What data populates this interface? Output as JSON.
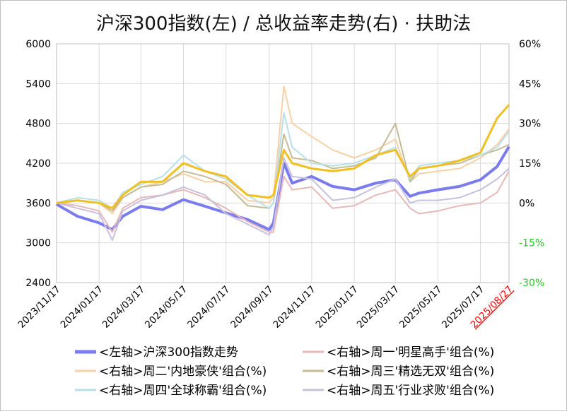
{
  "chart_data": {
    "type": "line",
    "title": "沪深300指数(左) / 总收益率走势(右) · 扶助法",
    "left_axis": {
      "ticks": [
        "6000",
        "5400",
        "4800",
        "4200",
        "3600",
        "3000",
        "2400"
      ],
      "ylim": [
        2400,
        6000
      ]
    },
    "right_axis": {
      "ticks": [
        "60%",
        "45%",
        "30%",
        "15%",
        "0%",
        "-15%",
        "-30%"
      ],
      "ylim": [
        -30,
        60
      ],
      "unit": "%",
      "tick_colors": [
        "#000000",
        "#000000",
        "#000000",
        "#000000",
        "#000000",
        "#22cc22",
        "#22cc22"
      ]
    },
    "x_ticks": [
      "2023/11/17",
      "2024/01/17",
      "2024/03/17",
      "2024/05/17",
      "2024/07/17",
      "2024/09/17",
      "2024/11/17",
      "2025/01/17",
      "2025/03/17",
      "2025/05/17",
      "2025/07/17",
      "2025/08/27"
    ],
    "x_tick_highlight": {
      "label": "2025/08/27",
      "color": "#ff0000"
    },
    "x": [
      "2023/11/17",
      "2023/12/17",
      "2024/01/17",
      "2024/02/05",
      "2024/02/20",
      "2024/03/17",
      "2024/04/17",
      "2024/05/17",
      "2024/06/17",
      "2024/07/17",
      "2024/08/17",
      "2024/09/17",
      "2024/09/23",
      "2024/10/08",
      "2024/10/20",
      "2024/11/17",
      "2024/12/17",
      "2025/01/17",
      "2025/02/17",
      "2025/03/17",
      "2025/04/07",
      "2025/04/20",
      "2025/05/17",
      "2025/06/17",
      "2025/07/17",
      "2025/08/10",
      "2025/08/27"
    ],
    "grid": true,
    "legend_position": "bottom",
    "series": [
      {
        "name": "<左轴>沪深300指数走势",
        "axis": "left",
        "color": "#7b7bf0",
        "width": 4,
        "values": [
          3580,
          3400,
          3300,
          3200,
          3400,
          3550,
          3500,
          3650,
          3550,
          3450,
          3350,
          3200,
          3300,
          4200,
          3900,
          4000,
          3850,
          3800,
          3900,
          3950,
          3700,
          3750,
          3800,
          3850,
          3950,
          4150,
          4450
        ]
      },
      {
        "name": "<右轴>周一'明星高手'组合(%)",
        "axis": "right",
        "color": "#e8b8b8",
        "width": 2,
        "values": [
          0,
          -1,
          -3,
          -11,
          -2,
          2,
          3,
          5,
          2,
          -2,
          -7,
          -11,
          -11,
          10,
          5,
          6,
          -2,
          -1,
          3,
          5,
          -2,
          -4,
          -3,
          -1,
          0,
          4,
          12
        ]
      },
      {
        "name": "<右轴>周二'内地豪侠'组合(%)",
        "axis": "right",
        "color": "#f8d0a8",
        "width": 2,
        "values": [
          0,
          1,
          0,
          -4,
          2,
          6,
          8,
          11,
          8,
          8,
          1,
          0,
          2,
          44,
          30,
          25,
          20,
          17,
          20,
          24,
          8,
          11,
          12,
          13,
          17,
          22,
          28
        ]
      },
      {
        "name": "<右轴>周三'精选无双'组合(%)",
        "axis": "right",
        "color": "#c4bc96",
        "width": 2,
        "values": [
          0,
          1,
          0,
          -3,
          2,
          6,
          7,
          12,
          10,
          7,
          -1,
          -2,
          0,
          26,
          17,
          16,
          13,
          14,
          17,
          30,
          8,
          13,
          14,
          15,
          18,
          20,
          22
        ]
      },
      {
        "name": "<右轴>周四'全球称霸'组合(%)",
        "axis": "right",
        "color": "#b8e0e8",
        "width": 2,
        "values": [
          0,
          2,
          1,
          -2,
          4,
          7,
          10,
          18,
          12,
          9,
          3,
          -2,
          0,
          34,
          21,
          15,
          14,
          15,
          18,
          21,
          9,
          14,
          15,
          16,
          18,
          21,
          27
        ]
      },
      {
        "name": "<右轴>周五'行业求败'组合(%)",
        "axis": "right",
        "color": "#c8c0dc",
        "width": 2,
        "values": [
          0,
          -2,
          -4,
          -14,
          -3,
          1,
          3,
          6,
          3,
          -4,
          -8,
          -12,
          -9,
          17,
          10,
          9,
          1,
          2,
          6,
          9,
          0,
          1,
          1,
          2,
          5,
          9,
          13
        ]
      },
      {
        "name": "",
        "axis": "right",
        "color": "#f0c020",
        "width": 3,
        "values": [
          0,
          1,
          0,
          -2,
          3,
          8,
          8,
          15,
          12,
          10,
          3,
          2,
          3,
          20,
          15,
          13,
          12,
          13,
          18,
          20,
          10,
          13,
          14,
          16,
          19,
          32,
          37
        ]
      }
    ]
  }
}
